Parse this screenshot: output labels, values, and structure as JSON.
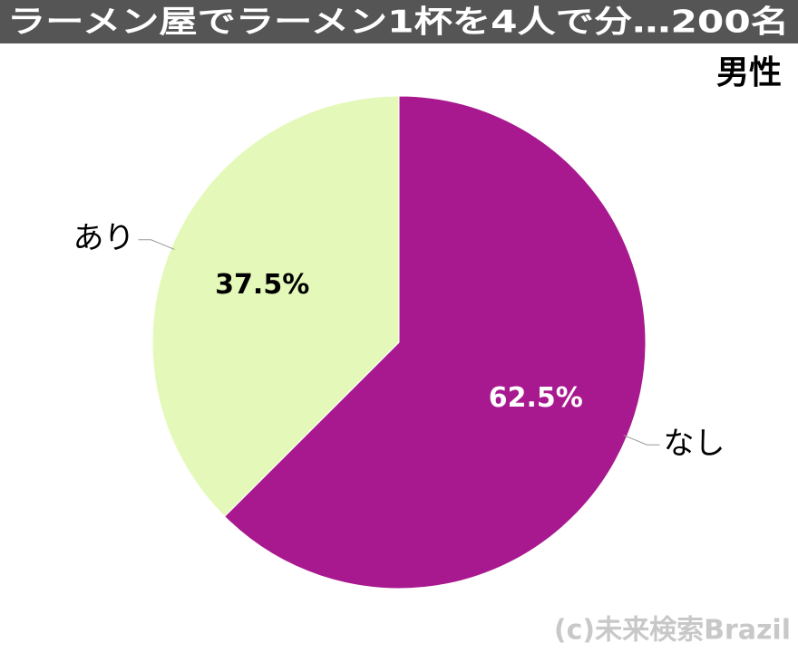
{
  "chart_data": {
    "type": "pie",
    "title": "ラーメン屋でラーメン1杯を4人で分…200名",
    "subtitle": "男性",
    "categories": [
      "なし",
      "あり"
    ],
    "values": [
      62.5,
      37.5
    ],
    "value_labels": [
      "62.5%",
      "37.5%"
    ],
    "colors": [
      "#a8198f",
      "#e4f9b9"
    ],
    "label_colors": [
      "#ffffff",
      "#000000"
    ],
    "watermark": "(c)未来検索Brazil"
  }
}
